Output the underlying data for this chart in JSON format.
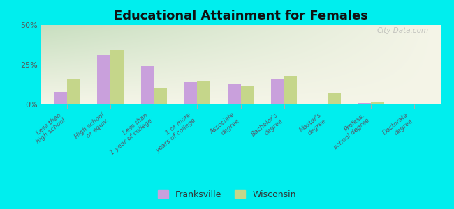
{
  "title": "Educational Attainment for Females",
  "categories": [
    "Less than\nhigh school",
    "High school\nor equiv.",
    "Less than\n1 year of college",
    "1 or more\nyears of college",
    "Associate\ndegree",
    "Bachelor's\ndegree",
    "Master's\ndegree",
    "Profess.\nschool degree",
    "Doctorate\ndegree"
  ],
  "franksville": [
    8,
    31,
    24,
    14,
    13,
    16,
    0,
    1,
    0
  ],
  "wisconsin": [
    16,
    34,
    10,
    15,
    12,
    18,
    7,
    1.5,
    0.5
  ],
  "franksville_color": "#c9a0dc",
  "wisconsin_color": "#c5d68a",
  "background_color": "#00eeee",
  "grad_color_top_left": "#c8dfc0",
  "grad_color_right": "#f5f5e8",
  "ylim": [
    0,
    50
  ],
  "yticks": [
    0,
    25,
    50
  ],
  "ytick_labels": [
    "0%",
    "25%",
    "50%"
  ],
  "bar_width": 0.3,
  "legend_labels": [
    "Franksville",
    "Wisconsin"
  ],
  "watermark": "City-Data.com",
  "title_fontsize": 13,
  "tick_label_fontsize": 6.5,
  "ytick_fontsize": 8
}
